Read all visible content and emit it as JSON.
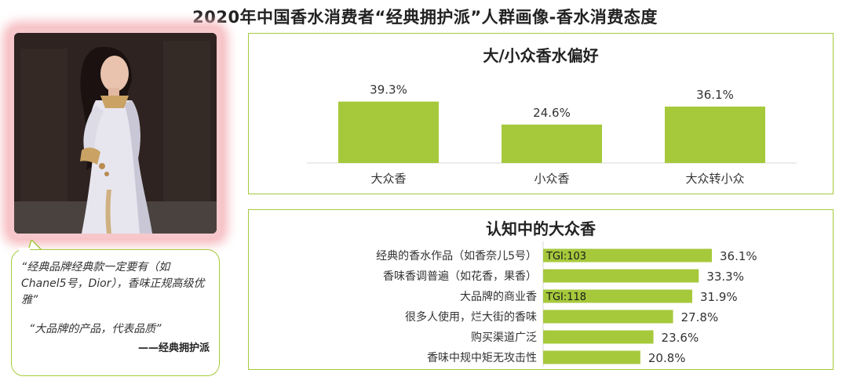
{
  "page": {
    "title": "2020年中国香水消费者“经典拥护派”人群画像-香水消费态度"
  },
  "bubble": {
    "quote1": "“经典品牌经典款一定要有（如Chanel5号，Dior），香味正规高级优雅”",
    "quote2": "“大品牌的产品，代表品质”",
    "attribution": "——经典拥护派"
  },
  "colors": {
    "bar": "#a6c93c",
    "panel_border": "#a6c93c",
    "photo_glow": "#f6b9be"
  },
  "chart_data": [
    {
      "type": "bar",
      "title": "大/小众香水偏好",
      "categories": [
        "大众香",
        "小众香",
        "大众转小众"
      ],
      "values": [
        39.3,
        24.6,
        36.1
      ],
      "value_labels": [
        "39.3%",
        "24.6%",
        "36.1%"
      ],
      "unit": "%",
      "ylim": [
        0,
        45
      ],
      "grid": false,
      "legend": "none"
    },
    {
      "type": "bar",
      "orientation": "horizontal",
      "title": "认知中的大众香",
      "categories": [
        "经典的香水作品（如香奈儿5号）",
        "香味香调普遍（如花香，果香）",
        "大品牌的商业香",
        "很多人使用，烂大街的香味",
        "购买渠道广泛",
        "香味中规中矩无攻击性"
      ],
      "values": [
        36.1,
        33.3,
        31.9,
        27.8,
        23.6,
        20.8
      ],
      "value_labels": [
        "36.1%",
        "33.3%",
        "31.9%",
        "27.8%",
        "23.6%",
        "20.8%"
      ],
      "annotations": [
        {
          "index": 0,
          "text": "TGI:103"
        },
        {
          "index": 2,
          "text": "TGI:118"
        }
      ],
      "unit": "%",
      "xlim": [
        0,
        40
      ],
      "grid": false,
      "legend": "none"
    }
  ]
}
